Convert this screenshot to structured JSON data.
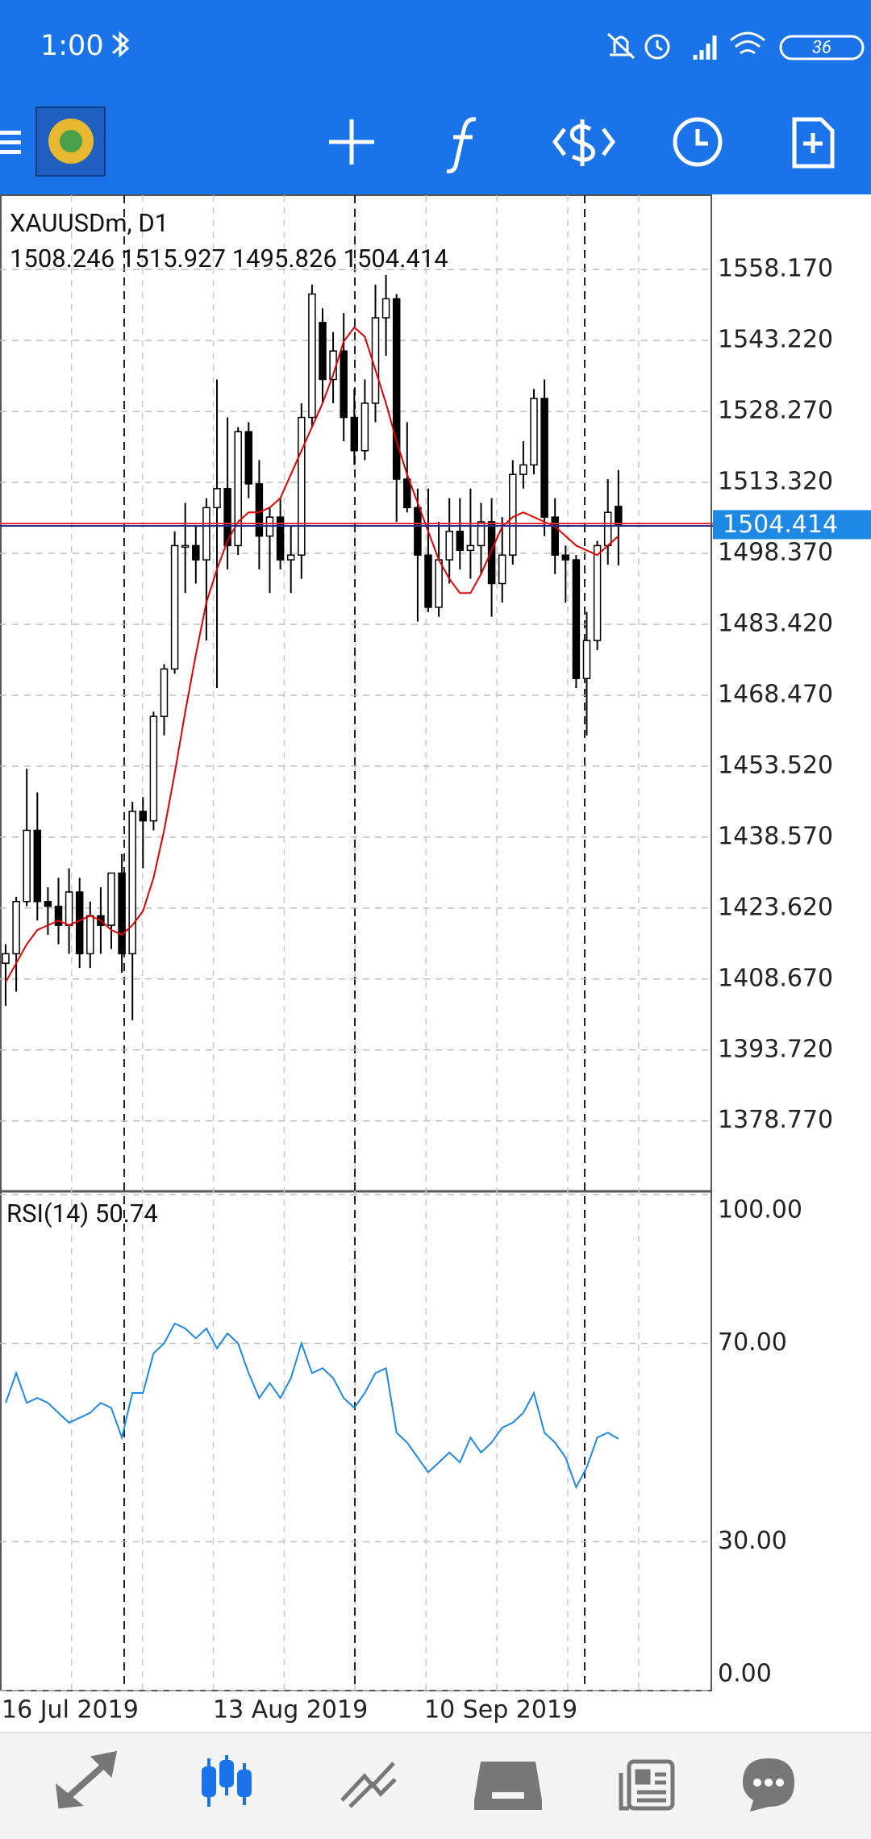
{
  "status_bar": {
    "time": "1:00",
    "battery": "36"
  },
  "chart_data": [
    {
      "type": "candlestick",
      "title": "XAUUSDm, D1",
      "categories": [
        "16 Jul 2019",
        null,
        null,
        null,
        null,
        null,
        null,
        null,
        null,
        null,
        null,
        null,
        null,
        null,
        null,
        null,
        null,
        null,
        null,
        null,
        "13 Aug 2019",
        null,
        null,
        null,
        null,
        null,
        null,
        null,
        null,
        null,
        null,
        null,
        null,
        null,
        null,
        null,
        null,
        null,
        null,
        null,
        "10 Sep 2019",
        null,
        null,
        null,
        null,
        null,
        null,
        null,
        null,
        null,
        null,
        null,
        null,
        null,
        null,
        null,
        null,
        null,
        null
      ],
      "open": [
        1412,
        1414,
        1425,
        1440,
        1425,
        1424,
        1420,
        1427,
        1414,
        1422,
        1420,
        1431,
        1414,
        1444,
        1442,
        1464,
        1474,
        1500,
        1500,
        1497,
        1508,
        1512,
        1500,
        1524,
        1513,
        1502,
        1506,
        1497,
        1498,
        1527,
        1547,
        1535,
        1541,
        1527,
        1520,
        1530,
        1548,
        1552,
        1514,
        1508,
        1498,
        1487,
        1497,
        1503,
        1499,
        1500,
        1505,
        1492,
        1498,
        1515,
        1517,
        1531,
        1506,
        1498,
        1497,
        1472,
        1480,
        1500,
        1508.246
      ],
      "high": [
        1416,
        1426,
        1453,
        1448,
        1428,
        1430,
        1432,
        1430,
        1425,
        1428,
        1431,
        1435,
        1446,
        1447,
        1465,
        1475,
        1503,
        1509,
        1504,
        1510,
        1535,
        1527,
        1525,
        1526,
        1518,
        1508,
        1510,
        1504,
        1530,
        1555,
        1550,
        1545,
        1549,
        1533,
        1535,
        1555,
        1557,
        1553,
        1526,
        1512,
        1512,
        1505,
        1510,
        1510,
        1512,
        1509,
        1510,
        1506,
        1518,
        1522,
        1533,
        1535,
        1510,
        1500,
        1498,
        1486,
        1501,
        1514,
        1515.927
      ],
      "low": [
        1403,
        1406,
        1424,
        1421,
        1418,
        1416,
        1414,
        1411,
        1411,
        1414,
        1415,
        1410,
        1400,
        1432,
        1440,
        1460,
        1473,
        1490,
        1492,
        1480,
        1470,
        1495,
        1498,
        1510,
        1495,
        1490,
        1495,
        1490,
        1493,
        1525,
        1530,
        1530,
        1522,
        1517,
        1518,
        1526,
        1540,
        1505,
        1507,
        1484,
        1486,
        1485,
        1492,
        1495,
        1493,
        1494,
        1485,
        1488,
        1496,
        1512,
        1515,
        1502,
        1494,
        1488,
        1470,
        1460,
        1478,
        1496,
        1495.826
      ],
      "close": [
        1414,
        1425,
        1440,
        1425,
        1424,
        1420,
        1427,
        1414,
        1422,
        1420,
        1431,
        1414,
        1444,
        1442,
        1464,
        1474,
        1500,
        1500,
        1497,
        1508,
        1512,
        1500,
        1524,
        1513,
        1502,
        1506,
        1497,
        1498,
        1527,
        1553,
        1535,
        1541,
        1527,
        1520,
        1530,
        1548,
        1552,
        1514,
        1508,
        1498,
        1487,
        1497,
        1503,
        1499,
        1500,
        1505,
        1492,
        1498,
        1515,
        1517,
        1531,
        1506,
        1498,
        1497,
        1472,
        1480,
        1500,
        1507,
        1504.414
      ],
      "colors": {
        "up": "#ffffff",
        "down": "#000000"
      },
      "ma": {
        "color": "#e00000",
        "values": [
          1408,
          1412,
          1416,
          1419,
          1420,
          1421,
          1420,
          1421,
          1422,
          1421,
          1419,
          1418,
          1420,
          1423,
          1430,
          1440,
          1452,
          1465,
          1477,
          1488,
          1495,
          1501,
          1505,
          1507,
          1507,
          1508,
          1510,
          1515,
          1520,
          1525,
          1530,
          1536,
          1543,
          1546,
          1544,
          1537,
          1530,
          1522,
          1515,
          1509,
          1503,
          1497,
          1493,
          1490,
          1490,
          1494,
          1499,
          1504,
          1506,
          1507,
          1506,
          1505,
          1504,
          1502,
          1500,
          1499,
          1498,
          1500,
          1502
        ]
      },
      "ylim": [
        1363.94,
        1573.49
      ],
      "yticks": [
        {
          "value": 1378.77,
          "label": "1378.770"
        },
        {
          "value": 1393.72,
          "label": "1393.720"
        },
        {
          "value": 1408.67,
          "label": "1408.670"
        },
        {
          "value": 1423.62,
          "label": "1423.620"
        },
        {
          "value": 1438.57,
          "label": "1438.570"
        },
        {
          "value": 1453.52,
          "label": "1453.520"
        },
        {
          "value": 1468.47,
          "label": "1468.470"
        },
        {
          "value": 1483.42,
          "label": "1483.420"
        },
        {
          "value": 1498.37,
          "label": "1498.370"
        },
        {
          "value": 1513.32,
          "label": "1513.320"
        },
        {
          "value": 1528.27,
          "label": "1528.270"
        },
        {
          "value": 1543.22,
          "label": "1543.220"
        },
        {
          "value": 1558.17,
          "label": "1558.170"
        }
      ],
      "grid": true
    },
    {
      "type": "line",
      "title": "RSI(14)",
      "series": [
        {
          "color": "#1e88e5",
          "values": [
            58,
            64,
            58,
            59,
            58,
            56,
            54,
            55,
            56,
            58,
            57,
            51,
            60,
            60,
            68,
            70,
            74,
            73,
            71,
            73,
            69,
            72,
            70,
            64,
            59,
            62,
            59,
            63,
            70,
            64,
            65,
            63,
            59,
            57,
            60,
            64,
            65,
            52,
            50,
            47,
            44,
            46,
            48,
            46,
            51,
            48,
            50,
            53,
            54,
            56,
            60,
            52,
            50,
            47,
            41,
            45,
            51,
            52,
            50.74
          ]
        }
      ],
      "ylim": [
        0,
        100
      ],
      "yticks": [
        {
          "value": 0,
          "label": "0.00"
        },
        {
          "value": 30,
          "label": "30.00"
        },
        {
          "value": 70,
          "label": "70.00"
        },
        {
          "value": 100,
          "label": "100.00"
        }
      ],
      "grid": true
    }
  ]
}
